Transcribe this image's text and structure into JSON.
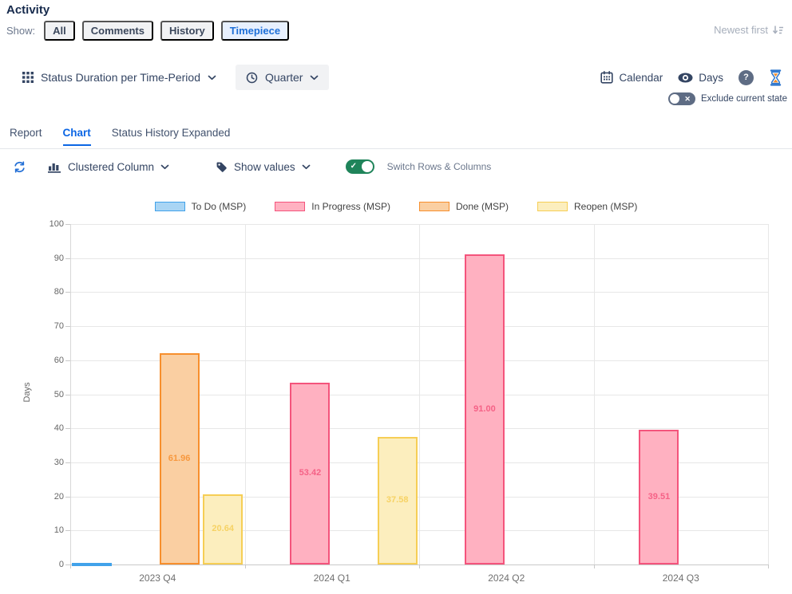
{
  "page": {
    "title": "Activity"
  },
  "show_bar": {
    "label": "Show:",
    "filters": [
      "All",
      "Comments",
      "History",
      "Timepiece"
    ],
    "active_filter": "Timepiece",
    "sort_label": "Newest first"
  },
  "toolbar": {
    "report_selector": "Status Duration per Time-Period",
    "period_selector": "Quarter",
    "calendar_label": "Calendar",
    "unit_label": "Days",
    "exclude_toggle_label": "Exclude current state",
    "exclude_toggle_on": false
  },
  "tabs": [
    {
      "label": "Report",
      "active": false
    },
    {
      "label": "Chart",
      "active": true
    },
    {
      "label": "Status History Expanded",
      "active": false
    }
  ],
  "chart_controls": {
    "chart_type": "Clustered Column",
    "values_mode": "Show values",
    "switch_label": "Switch Rows & Columns",
    "switch_on": true
  },
  "icons": {
    "help_glyph": "?",
    "toggle_off_glyph": "✕",
    "toggle_on_glyph": "✓"
  },
  "chart_data": {
    "type": "bar",
    "title": "",
    "xlabel": "",
    "ylabel": "Days",
    "ylim": [
      0,
      100
    ],
    "ytick_step": 10,
    "grid": true,
    "legend_position": "top",
    "categories": [
      "2023 Q4",
      "2024 Q1",
      "2024 Q2",
      "2024 Q3"
    ],
    "series": [
      {
        "name": "To Do (MSP)",
        "fill": "#A9D5F4",
        "border": "#41A2EA",
        "values": [
          0.3,
          0,
          0,
          0
        ],
        "labels": [
          "",
          "",
          "",
          ""
        ]
      },
      {
        "name": "In Progress (MSP)",
        "fill": "#FFB1C1",
        "border": "#F4547C",
        "values": [
          0,
          53.42,
          91.0,
          39.51
        ],
        "labels": [
          "",
          "53.42",
          "91.00",
          "39.51"
        ]
      },
      {
        "name": "Done (MSP)",
        "fill": "#FACFA2",
        "border": "#F78F2D",
        "values": [
          61.96,
          0,
          0,
          0
        ],
        "labels": [
          "61.96",
          "",
          "",
          ""
        ]
      },
      {
        "name": "Reopen (MSP)",
        "fill": "#FCEEBE",
        "border": "#F6CE55",
        "values": [
          20.64,
          37.58,
          0,
          0
        ],
        "labels": [
          "20.64",
          "37.58",
          "",
          ""
        ]
      }
    ]
  }
}
